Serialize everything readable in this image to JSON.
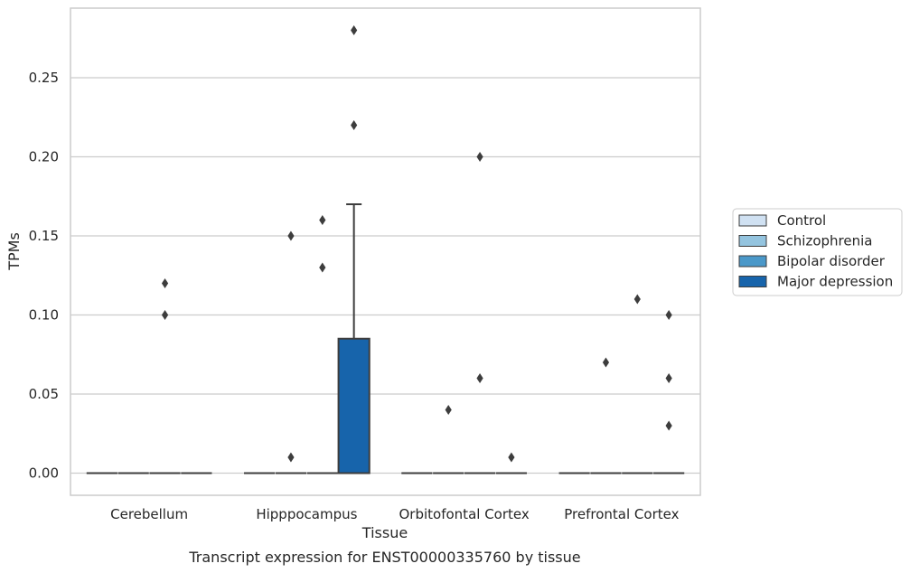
{
  "caption": "Transcript expression for ENST00000335760 by tissue",
  "chart_data": {
    "type": "box",
    "xlabel": "Tissue",
    "ylabel": "TPMs",
    "categories": [
      "Cerebellum",
      "Hipppocampus",
      "Orbitofontal Cortex",
      "Prefrontal Cortex"
    ],
    "ylim": [
      -0.014,
      0.294
    ],
    "yticks": [
      0.0,
      0.05,
      0.1,
      0.15,
      0.2,
      0.25
    ],
    "ytick_labels": [
      "0.00",
      "0.05",
      "0.10",
      "0.15",
      "0.20",
      "0.25"
    ],
    "grid": "horizontal",
    "legend_position": "right",
    "series": [
      {
        "name": "Control",
        "color": "#d0e1f2",
        "boxes": [
          {
            "category": "Cerebellum",
            "q1": 0,
            "median": 0,
            "q3": 0,
            "whisker_low": 0,
            "whisker_high": 0,
            "outliers": []
          },
          {
            "category": "Hipppocampus",
            "q1": 0,
            "median": 0,
            "q3": 0,
            "whisker_low": 0,
            "whisker_high": 0,
            "outliers": []
          },
          {
            "category": "Orbitofontal Cortex",
            "q1": 0,
            "median": 0,
            "q3": 0,
            "whisker_low": 0,
            "whisker_high": 0,
            "outliers": []
          },
          {
            "category": "Prefrontal Cortex",
            "q1": 0,
            "median": 0,
            "q3": 0,
            "whisker_low": 0,
            "whisker_high": 0,
            "outliers": []
          }
        ]
      },
      {
        "name": "Schizophrenia",
        "color": "#94c4df",
        "boxes": [
          {
            "category": "Cerebellum",
            "q1": 0,
            "median": 0,
            "q3": 0,
            "whisker_low": 0,
            "whisker_high": 0,
            "outliers": []
          },
          {
            "category": "Hipppocampus",
            "q1": 0,
            "median": 0,
            "q3": 0,
            "whisker_low": 0,
            "whisker_high": 0,
            "outliers": [
              0.01,
              0.15
            ]
          },
          {
            "category": "Orbitofontal Cortex",
            "q1": 0,
            "median": 0,
            "q3": 0,
            "whisker_low": 0,
            "whisker_high": 0,
            "outliers": [
              0.04
            ]
          },
          {
            "category": "Prefrontal Cortex",
            "q1": 0,
            "median": 0,
            "q3": 0,
            "whisker_low": 0,
            "whisker_high": 0,
            "outliers": [
              0.07
            ]
          }
        ]
      },
      {
        "name": "Bipolar disorder",
        "color": "#4a98c9",
        "boxes": [
          {
            "category": "Cerebellum",
            "q1": 0,
            "median": 0,
            "q3": 0,
            "whisker_low": 0,
            "whisker_high": 0,
            "outliers": [
              0.1,
              0.12
            ]
          },
          {
            "category": "Hipppocampus",
            "q1": 0,
            "median": 0,
            "q3": 0,
            "whisker_low": 0,
            "whisker_high": 0,
            "outliers": [
              0.13,
              0.16
            ]
          },
          {
            "category": "Orbitofontal Cortex",
            "q1": 0,
            "median": 0,
            "q3": 0,
            "whisker_low": 0,
            "whisker_high": 0,
            "outliers": [
              0.06,
              0.2
            ]
          },
          {
            "category": "Prefrontal Cortex",
            "q1": 0,
            "median": 0,
            "q3": 0,
            "whisker_low": 0,
            "whisker_high": 0,
            "outliers": [
              0.11
            ]
          }
        ]
      },
      {
        "name": "Major depression",
        "color": "#1764ab",
        "boxes": [
          {
            "category": "Cerebellum",
            "q1": 0,
            "median": 0,
            "q3": 0,
            "whisker_low": 0,
            "whisker_high": 0,
            "outliers": []
          },
          {
            "category": "Hipppocampus",
            "q1": 0,
            "median": 0,
            "q3": 0.085,
            "whisker_low": 0,
            "whisker_high": 0.17,
            "outliers": [
              0.22,
              0.28
            ]
          },
          {
            "category": "Orbitofontal Cortex",
            "q1": 0,
            "median": 0,
            "q3": 0,
            "whisker_low": 0,
            "whisker_high": 0,
            "outliers": [
              0.01
            ]
          },
          {
            "category": "Prefrontal Cortex",
            "q1": 0,
            "median": 0,
            "q3": 0,
            "whisker_low": 0,
            "whisker_high": 0,
            "outliers": [
              0.03,
              0.06,
              0.1
            ]
          }
        ]
      }
    ]
  },
  "colors": {
    "grid": "#cccccc",
    "frame": "#cccccc",
    "line": "#3d3d3d",
    "text": "#262626"
  }
}
